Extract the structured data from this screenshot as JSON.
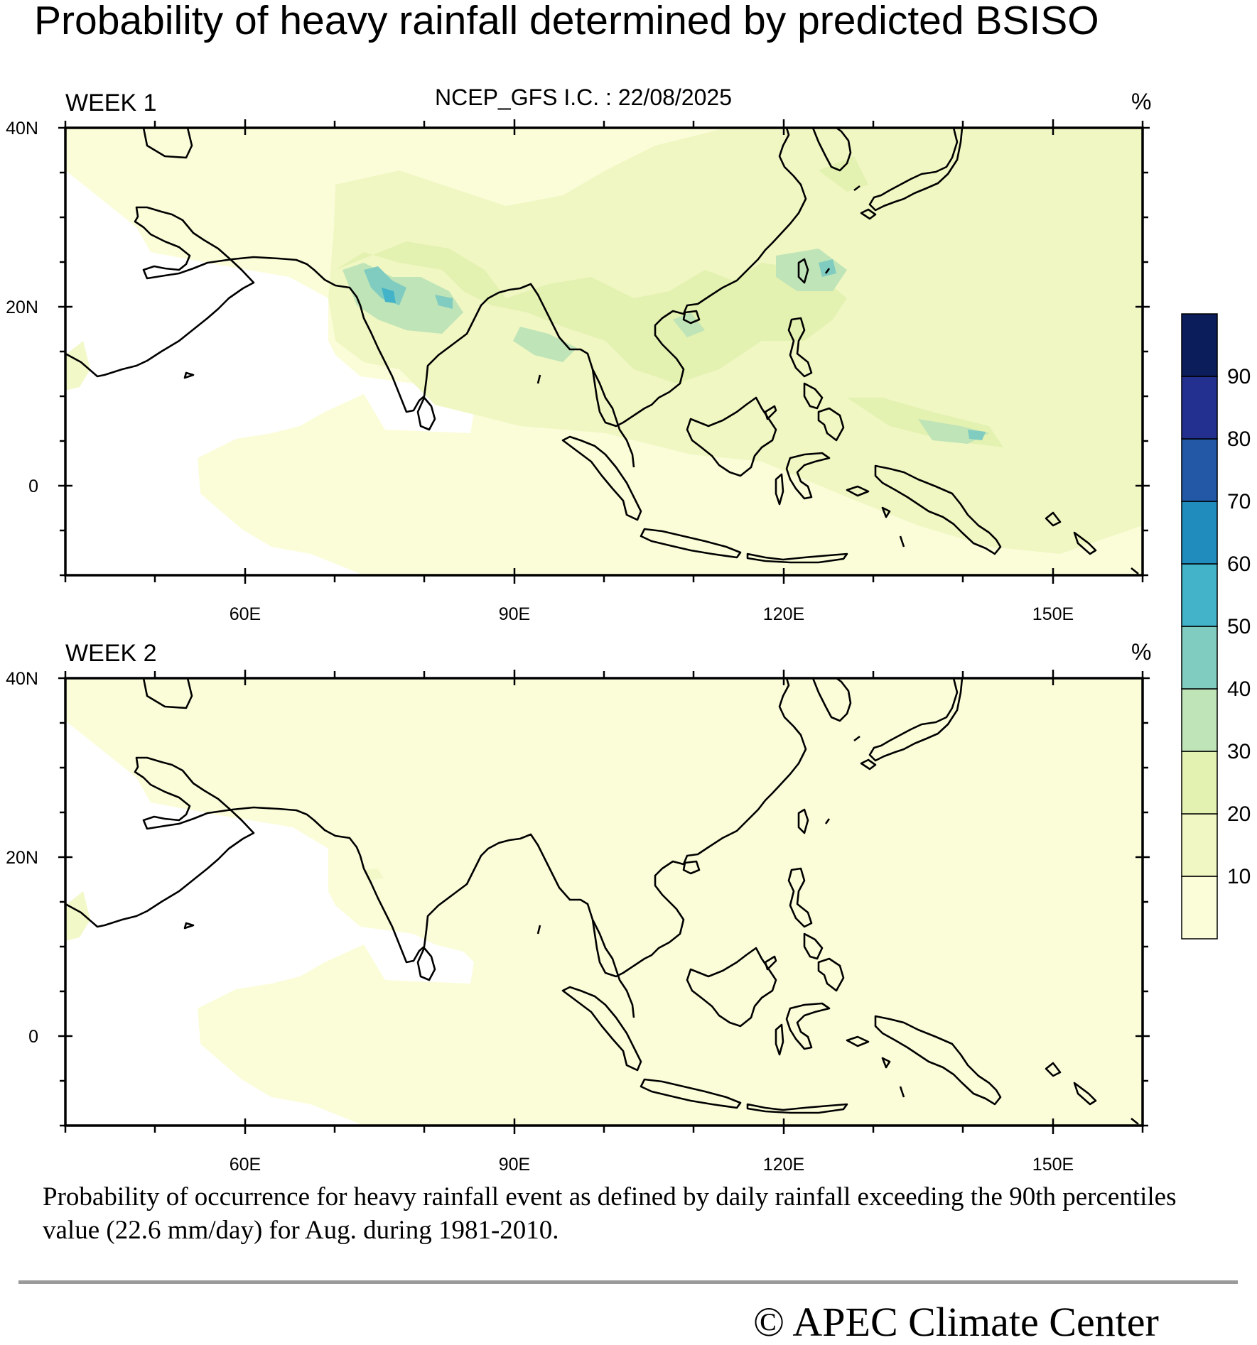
{
  "title": "Probability of heavy rainfall determined by predicted BSISO",
  "panels": [
    {
      "label": "WEEK 1",
      "subtitle": "NCEP_GFS  I.C. : 22/08/2025",
      "unit": "%"
    },
    {
      "label": "WEEK 2",
      "subtitle": "",
      "unit": "%"
    }
  ],
  "axes": {
    "x_ticks": [
      "60E",
      "90E",
      "120E",
      "150E"
    ],
    "y_ticks": [
      "40N",
      "20N",
      "0"
    ],
    "lon_range": [
      40,
      160
    ],
    "lat_range": [
      -10,
      40
    ]
  },
  "colorbar": {
    "levels": [
      "10",
      "20",
      "30",
      "40",
      "50",
      "60",
      "70",
      "80",
      "90"
    ],
    "colors": [
      "#fbfdd9",
      "#f0f7c3",
      "#e3f1b1",
      "#bfe4b8",
      "#80ccc0",
      "#42b3c8",
      "#1f8cbd",
      "#2258a6",
      "#24308f",
      "#0c1d5c"
    ]
  },
  "caption": "Probability of occurrence for heavy rainfall event as defined by daily rainfall exceeding the 90th percentiles value (22.6 mm/day) for Aug. during 1981-2010.",
  "credit": "© APEC Climate Center"
}
